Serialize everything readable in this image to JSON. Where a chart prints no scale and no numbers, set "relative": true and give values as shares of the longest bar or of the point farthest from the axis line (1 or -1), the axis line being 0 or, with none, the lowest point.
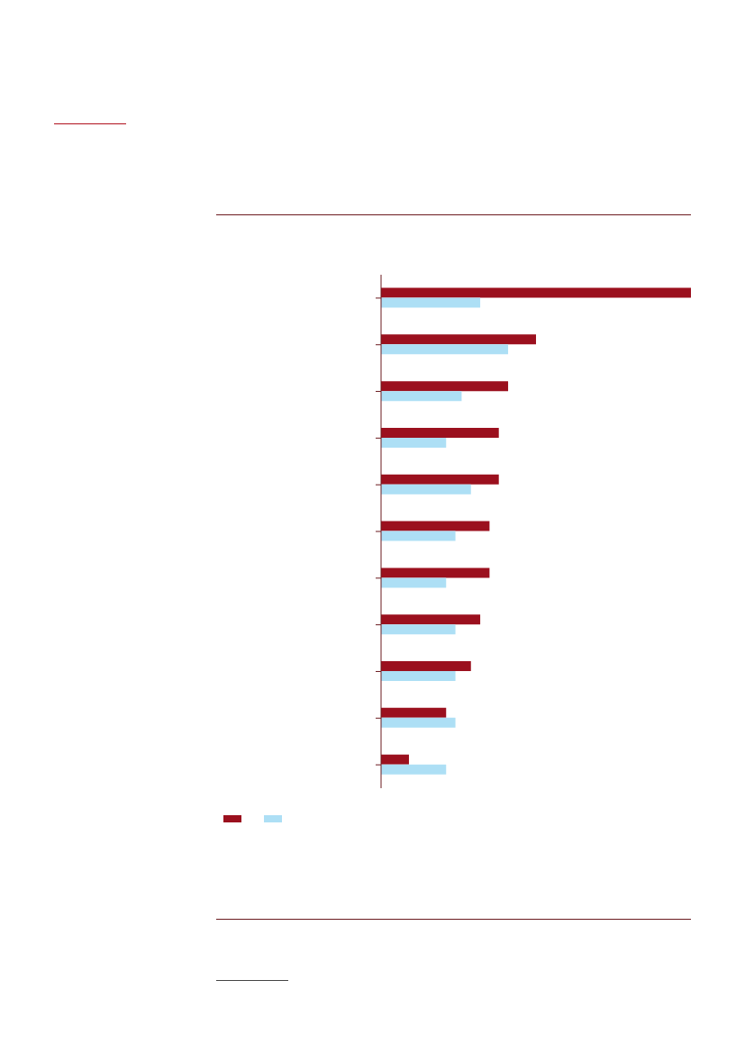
{
  "chart_data": {
    "type": "bar",
    "orientation": "horizontal",
    "relative": true,
    "categories": [
      null,
      null,
      null,
      null,
      null,
      null,
      null,
      null,
      null,
      null,
      null
    ],
    "series": [
      {
        "color": "#9b101e",
        "values": [
          1,
          0.5,
          0.41,
          0.38,
          0.38,
          0.35,
          0.35,
          0.32,
          0.29,
          0.21,
          0.09
        ]
      },
      {
        "color": "#addff5",
        "values": [
          0.32,
          0.41,
          0.26,
          0.21,
          0.29,
          0.24,
          0.21,
          0.24,
          0.24,
          0.24,
          0.21
        ]
      }
    ]
  }
}
